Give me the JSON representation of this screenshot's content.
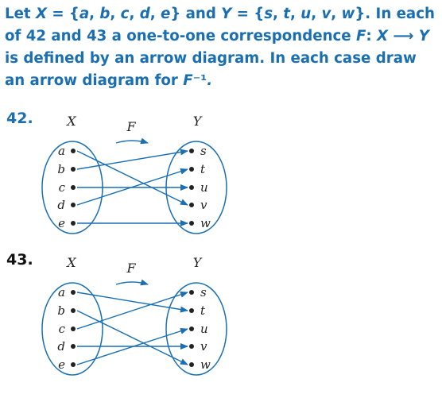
{
  "prompt": {
    "parts": [
      "Let ",
      "X",
      " = {",
      "a",
      ", ",
      "b",
      ", ",
      "c",
      ", ",
      "d",
      ", ",
      "e",
      "} and ",
      "Y",
      " = {",
      "s",
      ", ",
      "t",
      ", ",
      "u",
      ", ",
      "v",
      ", ",
      "w",
      "}. In each of 42 and 43 a one-to-one correspondence ",
      "F",
      ": ",
      "X",
      " ⟶ ",
      "Y",
      " is defined by an arrow diagram. In each case draw an arrow diagram for ",
      "F",
      "⁻¹",
      "."
    ]
  },
  "colors": {
    "accent": "#1a6fb3",
    "ink": "#222222"
  },
  "problems": [
    {
      "number": "42.",
      "domain_label": "X",
      "codomain_label": "Y",
      "function_label": "F",
      "domain": [
        "a",
        "b",
        "c",
        "d",
        "e"
      ],
      "codomain": [
        "s",
        "t",
        "u",
        "v",
        "w"
      ],
      "mapping": [
        [
          "a",
          "v"
        ],
        [
          "b",
          "s"
        ],
        [
          "c",
          "u"
        ],
        [
          "d",
          "t"
        ],
        [
          "e",
          "w"
        ]
      ]
    },
    {
      "number": "43.",
      "domain_label": "X",
      "codomain_label": "Y",
      "function_label": "F",
      "domain": [
        "a",
        "b",
        "c",
        "d",
        "e"
      ],
      "codomain": [
        "s",
        "t",
        "u",
        "v",
        "w"
      ],
      "mapping": [
        [
          "a",
          "t"
        ],
        [
          "b",
          "w"
        ],
        [
          "c",
          "s"
        ],
        [
          "d",
          "v"
        ],
        [
          "e",
          "u"
        ]
      ]
    }
  ]
}
